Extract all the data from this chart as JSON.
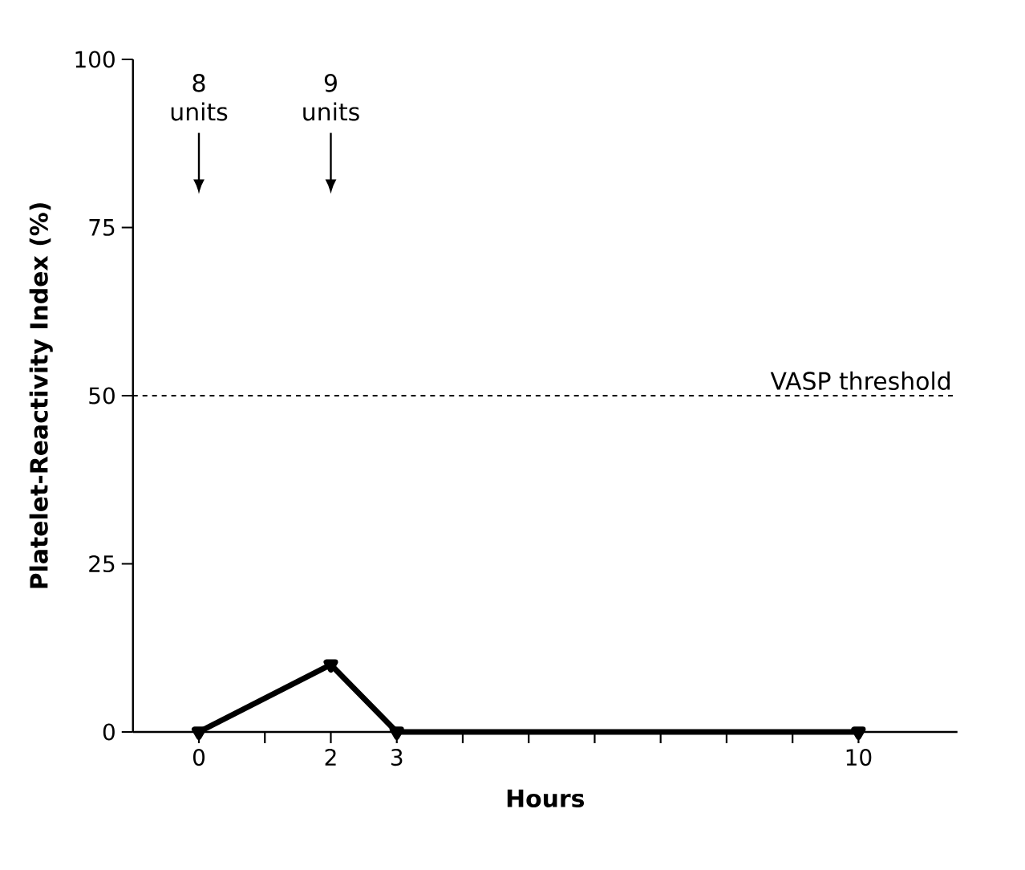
{
  "chart_data": {
    "type": "line",
    "xlabel": "Hours",
    "ylabel": "Platelet-Reactivity Index (%)",
    "x": [
      0,
      2,
      3,
      10
    ],
    "series": [
      {
        "color": "#000000",
        "values": [
          0,
          10,
          0,
          0
        ]
      }
    ],
    "marker": "triangle",
    "line_style": "solid",
    "xlim": [
      -1,
      11.5
    ],
    "ylim": [
      0,
      100
    ],
    "xticks": [
      0,
      {
        "value": 1,
        "label": null
      },
      2,
      3,
      {
        "value": 4,
        "label": null
      },
      {
        "value": 5,
        "label": null
      },
      {
        "value": 6,
        "label": null
      },
      {
        "value": 7,
        "label": null
      },
      {
        "value": 8,
        "label": null
      },
      {
        "value": 9,
        "label": null
      },
      10
    ],
    "yticks": [
      0,
      25,
      50,
      75,
      100
    ],
    "ref_lines": [
      {
        "axis": "y",
        "value": 50,
        "label": "VASP threshold",
        "line_style": "dashed",
        "color": "#000000"
      }
    ],
    "annotations": [
      "8 units",
      "9 units"
    ]
  }
}
